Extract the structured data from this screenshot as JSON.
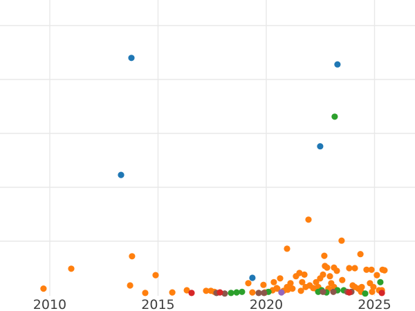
{
  "chart_data": {
    "type": "scatter",
    "title": "",
    "xlabel": "",
    "ylabel": "",
    "grid": true,
    "legend": "none",
    "background": "#ffffff",
    "gridline_color": "#e8e8e8",
    "tick_label_color": "#3d3d3d",
    "x_axis": {
      "ticks": [
        2010,
        2015,
        2020,
        2025
      ],
      "tick_labels": [
        "2010",
        "2015",
        "2020",
        "2025"
      ],
      "range": [
        2007.7,
        2026.87
      ]
    },
    "y_axis": {
      "tick_labels_visible": false,
      "gridline_values": [
        1,
        2,
        3,
        4,
        5
      ],
      "range": [
        -0.04,
        5.47
      ]
    },
    "series": [
      {
        "name": "orange",
        "color": "#ff7f0e",
        "points": [
          [
            2009.71,
            0.12
          ],
          [
            2010.99,
            0.49
          ],
          [
            2013.71,
            0.18
          ],
          [
            2013.8,
            0.72
          ],
          [
            2014.41,
            0.04
          ],
          [
            2014.89,
            0.37
          ],
          [
            2015.66,
            0.05
          ],
          [
            2016.33,
            0.09
          ],
          [
            2017.22,
            0.08
          ],
          [
            2017.44,
            0.08
          ],
          [
            2017.6,
            0.06
          ],
          [
            2019.17,
            0.22
          ],
          [
            2019.36,
            0.05
          ],
          [
            2019.87,
            0.19
          ],
          [
            2019.94,
            0.05
          ],
          [
            2020.29,
            0.09
          ],
          [
            2020.35,
            0.24
          ],
          [
            2020.48,
            0.13
          ],
          [
            2020.51,
            0.12
          ],
          [
            2020.64,
            0.31
          ],
          [
            2020.8,
            0.08
          ],
          [
            2020.96,
            0.86
          ],
          [
            2020.96,
            0.15
          ],
          [
            2020.99,
            0.1
          ],
          [
            2021.12,
            0.22
          ],
          [
            2021.21,
            0.12
          ],
          [
            2021.37,
            0.35
          ],
          [
            2021.53,
            0.41
          ],
          [
            2021.6,
            0.08
          ],
          [
            2021.66,
            0.24
          ],
          [
            2021.76,
            0.38
          ],
          [
            2021.82,
            0.15
          ],
          [
            2021.95,
            1.4
          ],
          [
            2022.01,
            0.18
          ],
          [
            2022.17,
            0.13
          ],
          [
            2022.3,
            0.24
          ],
          [
            2022.3,
            0.12
          ],
          [
            2022.4,
            0.15
          ],
          [
            2022.49,
            0.31
          ],
          [
            2022.62,
            0.38
          ],
          [
            2022.68,
            0.73
          ],
          [
            2022.71,
            0.54
          ],
          [
            2022.81,
            0.51
          ],
          [
            2022.87,
            0.12
          ],
          [
            2022.94,
            0.35
          ],
          [
            2023.0,
            0.22
          ],
          [
            2023.13,
            0.51
          ],
          [
            2023.13,
            0.15
          ],
          [
            2023.26,
            0.45
          ],
          [
            2023.48,
            1.01
          ],
          [
            2023.51,
            0.28
          ],
          [
            2023.83,
            0.5
          ],
          [
            2023.99,
            0.18
          ],
          [
            2024.09,
            0.5
          ],
          [
            2024.09,
            0.15
          ],
          [
            2024.25,
            0.12
          ],
          [
            2024.35,
            0.76
          ],
          [
            2024.38,
            0.06
          ],
          [
            2024.41,
            0.15
          ],
          [
            2024.63,
            0.47
          ],
          [
            2024.79,
            0.22
          ],
          [
            2024.86,
            0.47
          ],
          [
            2024.89,
            0.06
          ],
          [
            2024.95,
            0.15
          ],
          [
            2025.11,
            0.37
          ],
          [
            2025.21,
            0.09
          ],
          [
            2025.34,
            0.09
          ],
          [
            2025.37,
            0.47
          ],
          [
            2025.46,
            0.46
          ]
        ]
      },
      {
        "name": "green",
        "color": "#2ca02c",
        "points": [
          [
            2018.37,
            0.04
          ],
          [
            2018.63,
            0.05
          ],
          [
            2018.88,
            0.06
          ],
          [
            2020.1,
            0.06
          ],
          [
            2022.4,
            0.06
          ],
          [
            2022.56,
            0.09
          ],
          [
            2022.78,
            0.05
          ],
          [
            2023.16,
            3.31
          ],
          [
            2023.29,
            0.09
          ],
          [
            2023.58,
            0.09
          ],
          [
            2024.57,
            0.03
          ],
          [
            2025.27,
            0.24
          ]
        ]
      },
      {
        "name": "brown",
        "color": "#8c564b",
        "points": [
          [
            2017.7,
            0.04
          ],
          [
            2018.08,
            0.03
          ],
          [
            2019.65,
            0.04
          ],
          [
            2019.9,
            0.04
          ],
          [
            2022.62,
            0.06
          ],
          [
            2023.1,
            0.06
          ],
          [
            2023.74,
            0.06
          ],
          [
            2023.93,
            0.06
          ]
        ]
      },
      {
        "name": "red",
        "color": "#d62728",
        "points": [
          [
            2016.55,
            0.04
          ],
          [
            2017.86,
            0.05
          ],
          [
            2023.83,
            0.05
          ],
          [
            2025.34,
            0.04
          ]
        ]
      },
      {
        "name": "purple",
        "color": "#9467bd",
        "points": [
          [
            2020.7,
            0.05
          ]
        ]
      },
      {
        "name": "blue",
        "color": "#1f77b4",
        "points": [
          [
            2013.29,
            2.23
          ],
          [
            2013.77,
            4.4
          ],
          [
            2019.36,
            0.32
          ],
          [
            2022.49,
            2.76
          ],
          [
            2023.29,
            4.28
          ]
        ]
      }
    ]
  }
}
